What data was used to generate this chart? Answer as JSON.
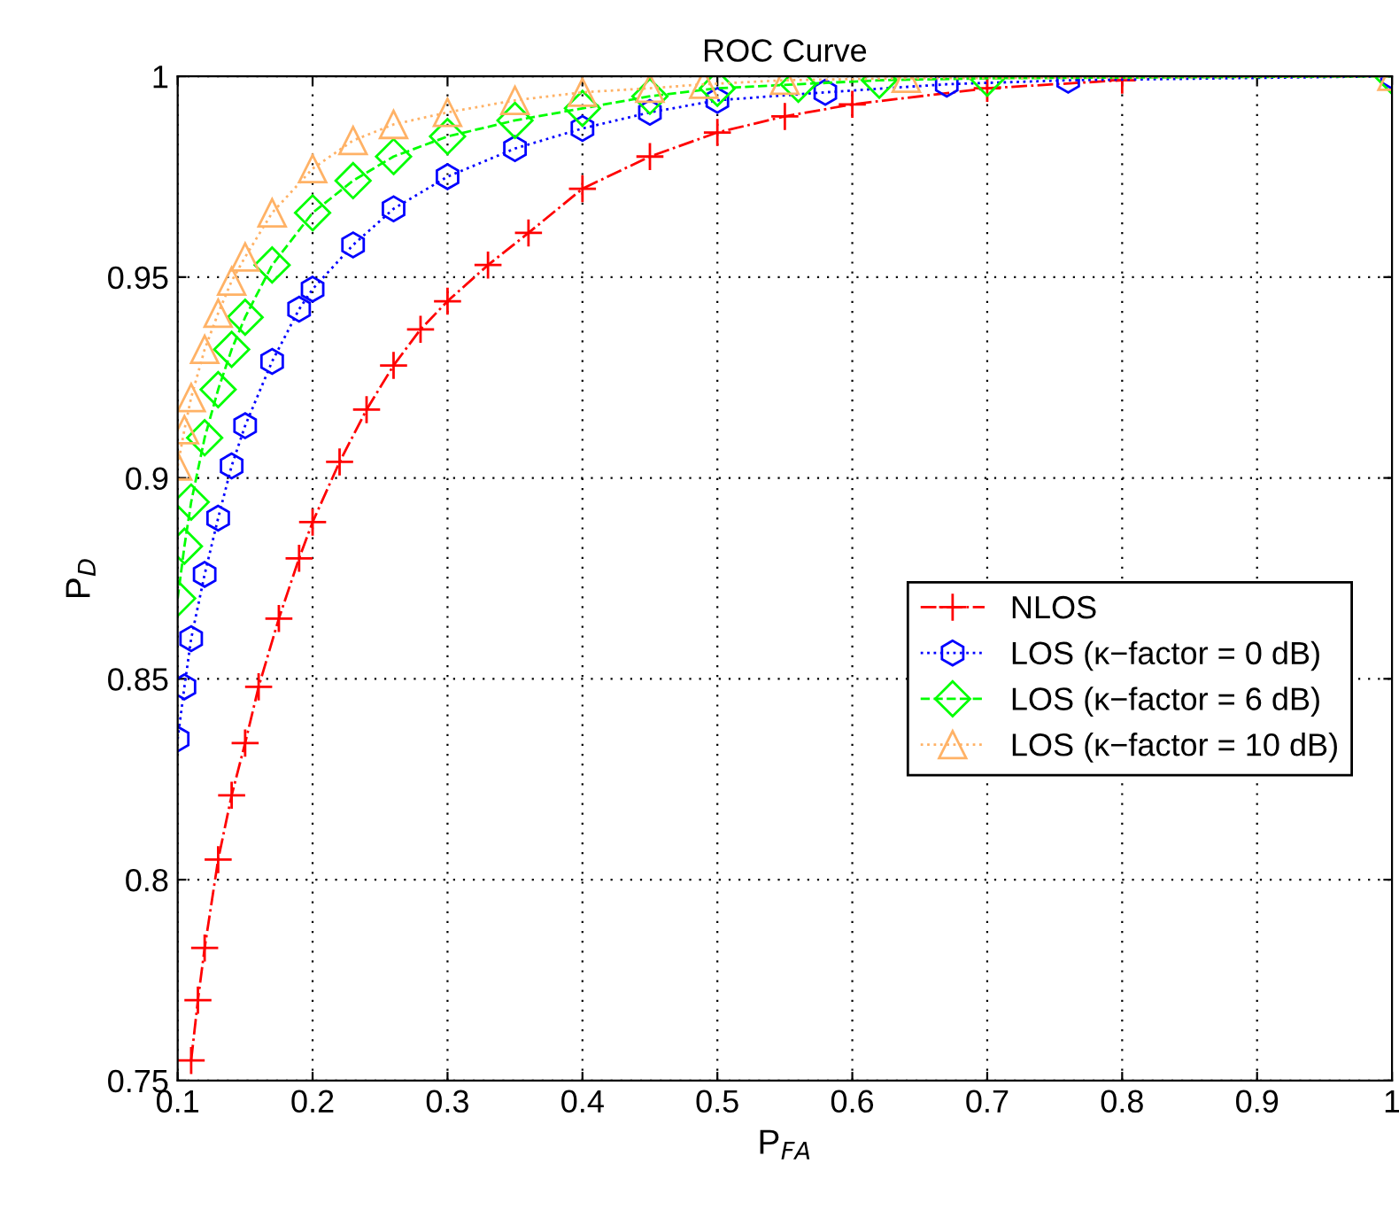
{
  "chart_data": {
    "type": "line",
    "title": "ROC Curve",
    "xlabel": "P$_{FA}$",
    "ylabel": "P$_{D}$",
    "xlim": [
      0.1,
      1
    ],
    "ylim": [
      0.75,
      1
    ],
    "xticks": [
      0.1,
      0.2,
      0.3,
      0.4,
      0.5,
      0.6,
      0.7,
      0.8,
      0.9,
      1
    ],
    "yticks": [
      0.75,
      0.8,
      0.85,
      0.9,
      0.95,
      1
    ],
    "grid": true,
    "legend": "right",
    "series": [
      {
        "name": "NLOS",
        "color": "#ff0000",
        "marker": "cross",
        "line_style": "dashdot",
        "x": [
          0.11,
          0.115,
          0.12,
          0.13,
          0.14,
          0.15,
          0.16,
          0.175,
          0.19,
          0.2,
          0.22,
          0.24,
          0.26,
          0.28,
          0.3,
          0.33,
          0.36,
          0.4,
          0.45,
          0.5,
          0.55,
          0.6,
          0.7,
          0.8
        ],
        "values": [
          0.755,
          0.77,
          0.783,
          0.805,
          0.821,
          0.834,
          0.848,
          0.865,
          0.88,
          0.889,
          0.904,
          0.917,
          0.928,
          0.937,
          0.944,
          0.953,
          0.961,
          0.972,
          0.98,
          0.986,
          0.99,
          0.993,
          0.997,
          0.999
        ]
      },
      {
        "name": "LOS (κ−factor = 0 dB)",
        "color": "#0000ff",
        "marker": "star",
        "line_style": "dotted",
        "x": [
          0.1,
          0.105,
          0.11,
          0.12,
          0.13,
          0.14,
          0.15,
          0.17,
          0.19,
          0.2,
          0.23,
          0.26,
          0.3,
          0.35,
          0.4,
          0.45,
          0.5,
          0.58,
          0.67,
          0.76,
          1
        ],
        "values": [
          0.835,
          0.848,
          0.86,
          0.876,
          0.89,
          0.903,
          0.913,
          0.929,
          0.942,
          0.947,
          0.958,
          0.967,
          0.975,
          0.982,
          0.987,
          0.991,
          0.994,
          0.996,
          0.998,
          0.999,
          1
        ]
      },
      {
        "name": "LOS (κ−factor = 6 dB)",
        "color": "#00ff00",
        "marker": "diamond",
        "line_style": "dashed",
        "x": [
          0.1,
          0.105,
          0.11,
          0.12,
          0.13,
          0.14,
          0.15,
          0.17,
          0.2,
          0.23,
          0.26,
          0.3,
          0.35,
          0.4,
          0.45,
          0.5,
          0.56,
          0.62,
          0.7,
          1
        ],
        "values": [
          0.87,
          0.883,
          0.894,
          0.91,
          0.922,
          0.932,
          0.94,
          0.953,
          0.966,
          0.974,
          0.98,
          0.985,
          0.989,
          0.992,
          0.995,
          0.997,
          0.998,
          0.999,
          0.9995,
          1
        ]
      },
      {
        "name": "LOS (κ−factor = 10 dB)",
        "color": "#ffb266",
        "marker": "triangle",
        "line_style": "dotted",
        "x": [
          0.1,
          0.105,
          0.11,
          0.12,
          0.13,
          0.14,
          0.15,
          0.17,
          0.2,
          0.23,
          0.26,
          0.3,
          0.35,
          0.4,
          0.45,
          0.49,
          0.55,
          0.64,
          1
        ],
        "values": [
          0.903,
          0.912,
          0.92,
          0.932,
          0.941,
          0.949,
          0.955,
          0.966,
          0.977,
          0.984,
          0.988,
          0.991,
          0.994,
          0.996,
          0.997,
          0.998,
          0.999,
          0.9995,
          1
        ]
      }
    ]
  }
}
